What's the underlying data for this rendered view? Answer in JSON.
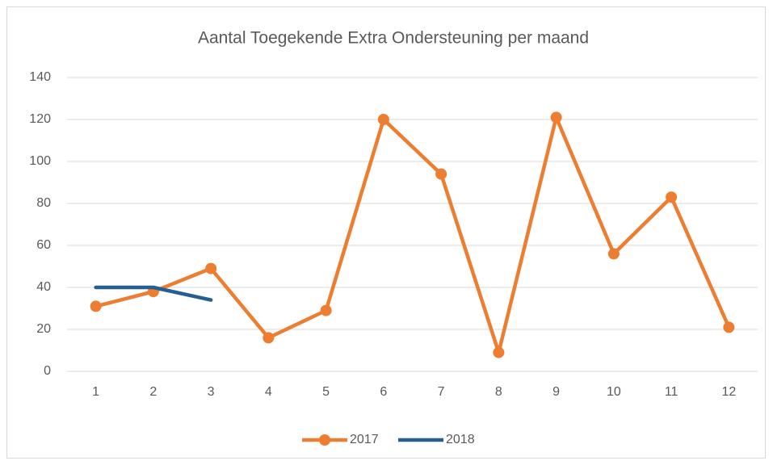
{
  "chart_data": {
    "type": "line",
    "title": "Aantal Toegekende Extra Ondersteuning per maand",
    "categories": [
      "1",
      "2",
      "3",
      "4",
      "5",
      "6",
      "7",
      "8",
      "9",
      "10",
      "11",
      "12"
    ],
    "series": [
      {
        "name": "2017",
        "color": "#ED7D31",
        "marker": "circle",
        "values": [
          31,
          38,
          49,
          16,
          29,
          120,
          94,
          9,
          121,
          56,
          83,
          21
        ]
      },
      {
        "name": "2018",
        "color": "#255E91",
        "values": [
          40,
          40,
          34,
          null,
          null,
          null,
          null,
          null,
          null,
          null,
          null,
          null
        ]
      }
    ],
    "ylim": [
      0,
      140
    ],
    "yticks": [
      0,
      20,
      40,
      60,
      80,
      100,
      120,
      140
    ],
    "grid": true,
    "legend": "bottom"
  }
}
